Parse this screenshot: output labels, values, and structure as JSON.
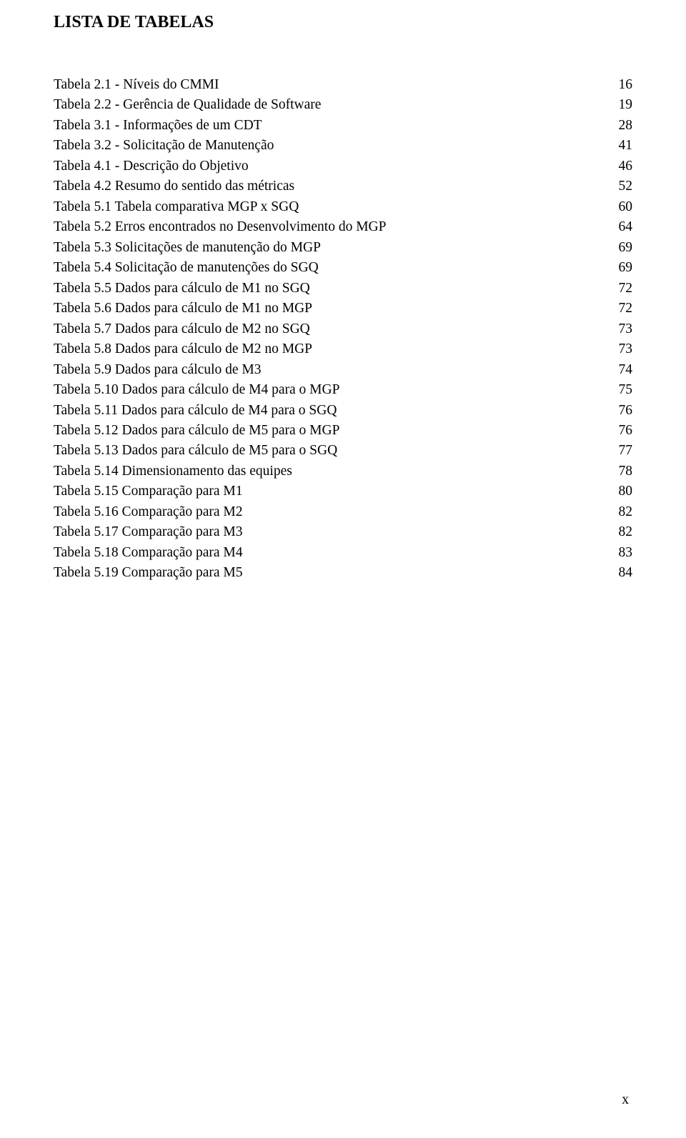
{
  "heading": "LISTA DE TABELAS",
  "pageNumber": "x",
  "entries": [
    {
      "title": "Tabela 2.1 - Níveis do CMMI",
      "page": "16"
    },
    {
      "title": "Tabela 2.2 - Gerência de Qualidade de Software",
      "page": "19"
    },
    {
      "title": "Tabela 3.1 - Informações de um CDT",
      "page": "28"
    },
    {
      "title": "Tabela 3.2 - Solicitação de Manutenção",
      "page": "41"
    },
    {
      "title": "Tabela 4.1 - Descrição do Objetivo",
      "page": "46"
    },
    {
      "title": "Tabela 4.2 Resumo do sentido das métricas",
      "page": "52"
    },
    {
      "title": "Tabela 5.1 Tabela comparativa MGP x SGQ",
      "page": "60"
    },
    {
      "title": "Tabela 5.2 Erros encontrados no Desenvolvimento do MGP",
      "page": "64"
    },
    {
      "title": "Tabela 5.3 Solicitações de manutenção do MGP",
      "page": "69"
    },
    {
      "title": "Tabela 5.4 Solicitação de manutenções do SGQ",
      "page": "69"
    },
    {
      "title": "Tabela 5.5 Dados para cálculo de M1 no SGQ",
      "page": "72"
    },
    {
      "title": "Tabela 5.6 Dados para cálculo de M1 no MGP",
      "page": "72"
    },
    {
      "title": "Tabela 5.7 Dados para cálculo de M2 no SGQ",
      "page": "73"
    },
    {
      "title": "Tabela 5.8 Dados para cálculo de M2 no MGP",
      "page": "73"
    },
    {
      "title": "Tabela 5.9 Dados para cálculo de M3",
      "page": "74"
    },
    {
      "title": "Tabela 5.10 Dados para cálculo de M4 para o MGP",
      "page": "75"
    },
    {
      "title": "Tabela 5.11 Dados para cálculo de M4 para o SGQ",
      "page": "76"
    },
    {
      "title": "Tabela 5.12 Dados para cálculo de M5 para o MGP",
      "page": "76"
    },
    {
      "title": "Tabela 5.13 Dados para cálculo de M5 para o SGQ",
      "page": "77"
    },
    {
      "title": "Tabela 5.14 Dimensionamento das equipes",
      "page": "78"
    },
    {
      "title": "Tabela 5.15 Comparação para M1",
      "page": "80"
    },
    {
      "title": "Tabela 5.16 Comparação para M2",
      "page": "82"
    },
    {
      "title": "Tabela 5.17 Comparação para M3",
      "page": "82"
    },
    {
      "title": "Tabela 5.18 Comparação para M4",
      "page": "83"
    },
    {
      "title": "Tabela 5.19 Comparação para M5",
      "page": "84"
    }
  ]
}
